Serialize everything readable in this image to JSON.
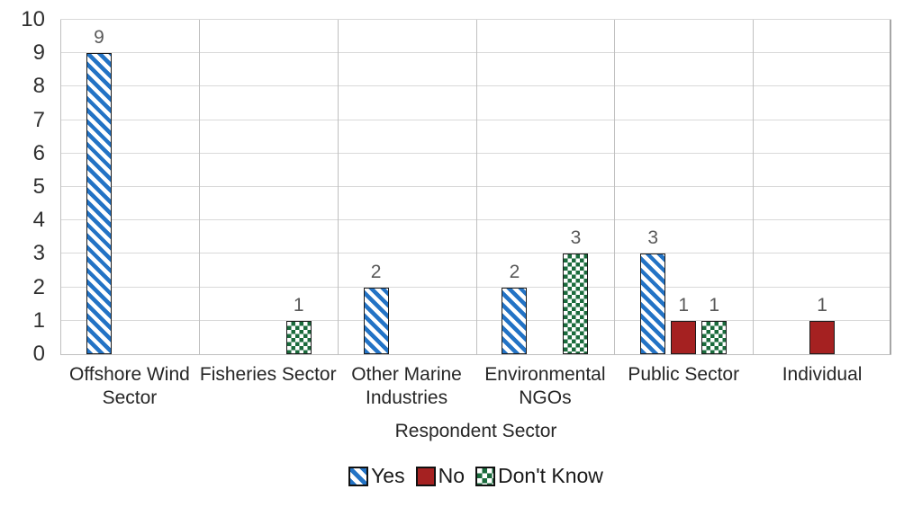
{
  "chart_data": {
    "type": "bar",
    "title": "",
    "xlabel": "Respondent Sector",
    "ylabel": "",
    "ylim": [
      0,
      10
    ],
    "yticks": [
      0,
      1,
      2,
      3,
      4,
      5,
      6,
      7,
      8,
      9,
      10
    ],
    "grid": true,
    "legend_position": "bottom",
    "data_labels": true,
    "categories": [
      "Offshore Wind Sector",
      "Fisheries Sector",
      "Other Marine Industries",
      "Environmental NGOs",
      "Public Sector",
      "Individual"
    ],
    "series": [
      {
        "name": "Yes",
        "pattern": "diagonal-stripes",
        "color": "#2373C5",
        "values": [
          9,
          0,
          2,
          2,
          3,
          0
        ]
      },
      {
        "name": "No",
        "pattern": "solid",
        "color": "#A52121",
        "values": [
          0,
          0,
          0,
          0,
          1,
          1
        ]
      },
      {
        "name": "Don't Know",
        "pattern": "checker",
        "color": "#1A6B3C",
        "values": [
          0,
          1,
          0,
          3,
          1,
          0
        ]
      }
    ]
  },
  "colors": {
    "background": "#FFFFFF",
    "gridline": "#D9D9D9",
    "category_line": "#BFBFBF",
    "plot_right_border": "#A6A6A6",
    "axis_line": "#BFBFBF",
    "bar_border": "#1B1B1B",
    "data_label": "#595959",
    "tick_label": "#303030",
    "category_label": "#262626",
    "axis_title": "#262626",
    "legend_label": "#1A1A1A"
  }
}
